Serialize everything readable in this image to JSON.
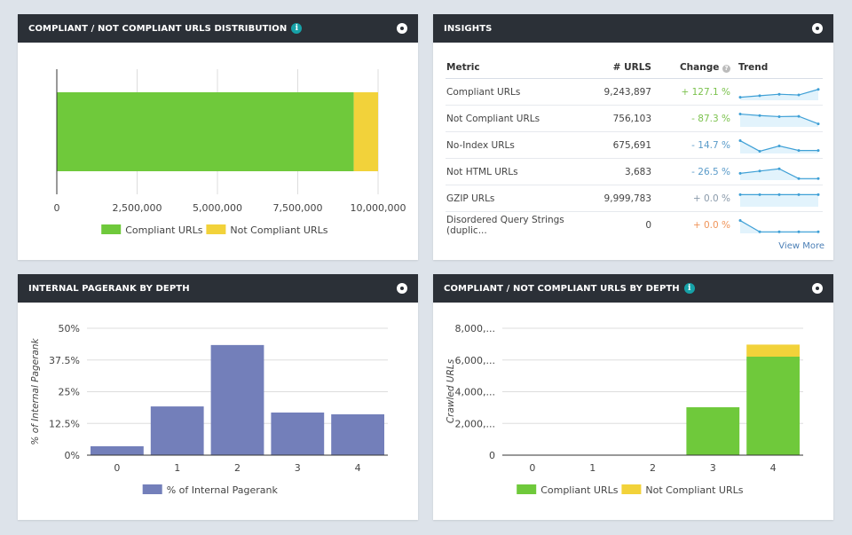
{
  "panels": {
    "dist": {
      "title": "COMPLIANT / NOT COMPLIANT URLS DISTRIBUTION"
    },
    "insights": {
      "title": "INSIGHTS",
      "view_more": "View More"
    },
    "pagerank": {
      "title": "INTERNAL PAGERANK BY DEPTH"
    },
    "depth": {
      "title": "COMPLIANT / NOT COMPLIANT URLS BY DEPTH"
    }
  },
  "insights": {
    "headers": {
      "metric": "Metric",
      "urls": "# URLS",
      "change": "Change",
      "trend": "Trend"
    },
    "rows": [
      {
        "metric": "Compliant URLs",
        "urls": "9,243,897",
        "change": "+ 127.1 %",
        "change_color": "#7cc24e",
        "trend": [
          20,
          30,
          40,
          35,
          72
        ]
      },
      {
        "metric": "Not Compliant URLs",
        "urls": "756,103",
        "change": "- 87.3 %",
        "change_color": "#7cc24e",
        "trend": [
          85,
          75,
          68,
          70,
          20
        ]
      },
      {
        "metric": "No-Index URLs",
        "urls": "675,691",
        "change": "- 14.7 %",
        "change_color": "#5a9bc9",
        "trend": [
          85,
          15,
          50,
          20,
          20
        ]
      },
      {
        "metric": "Not HTML URLs",
        "urls": "3,683",
        "change": "- 26.5 %",
        "change_color": "#5a9bc9",
        "trend": [
          45,
          60,
          75,
          10,
          10
        ]
      },
      {
        "metric": "GZIP URLs",
        "urls": "9,999,783",
        "change": "+ 0.0 %",
        "change_color": "#8a9aaa",
        "trend": [
          80,
          80,
          80,
          80,
          80
        ]
      },
      {
        "metric": "Disordered Query Strings (duplic...",
        "urls": "0",
        "change": "+ 0.0 %",
        "change_color": "#f0955a",
        "trend": [
          85,
          10,
          10,
          10,
          10
        ]
      }
    ]
  },
  "chart_data": [
    {
      "type": "bar",
      "orientation": "horizontal",
      "stacked": true,
      "series": [
        {
          "name": "Compliant URLs",
          "values": [
            9243897
          ],
          "color": "#6fc93b"
        },
        {
          "name": "Not Compliant URLs",
          "values": [
            756103
          ],
          "color": "#f2d23a"
        }
      ],
      "xlim": [
        0,
        10000000
      ],
      "xticks": [
        "0",
        "2,500,000",
        "5,000,000",
        "7,500,000",
        "10,000,000"
      ],
      "grid": true,
      "legend": "bottom"
    },
    {
      "type": "bar",
      "categories": [
        "0",
        "1",
        "2",
        "3",
        "4"
      ],
      "series": [
        {
          "name": "% of Internal Pagerank",
          "values": [
            3.5,
            19.2,
            43.4,
            16.8,
            16.1
          ],
          "color": "#737fba"
        }
      ],
      "ylabel": "% of Internal Pagerank",
      "ylim": [
        0,
        50
      ],
      "yticks": [
        "0%",
        "12.5%",
        "25%",
        "37.5%",
        "50%"
      ],
      "grid": true,
      "legend": "bottom"
    },
    {
      "type": "bar",
      "stacked": true,
      "categories": [
        "0",
        "1",
        "2",
        "3",
        "4"
      ],
      "series": [
        {
          "name": "Compliant URLs",
          "values": [
            0,
            0,
            0,
            3020,
            6210
          ],
          "color": "#6fc93b"
        },
        {
          "name": "Not Compliant URLs",
          "values": [
            0,
            0,
            0,
            0,
            760
          ],
          "color": "#f2d23a"
        }
      ],
      "ylabel": "Crawled URLs",
      "ylim": [
        0,
        8000
      ],
      "yticks": [
        "0",
        "2,000,...",
        "4,000,...",
        "6,000,...",
        "8,000,..."
      ],
      "grid": true,
      "legend": "bottom"
    }
  ]
}
